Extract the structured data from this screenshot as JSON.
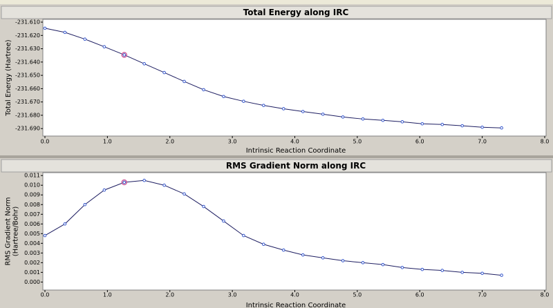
{
  "chart_data": [
    {
      "type": "line",
      "title": "Total Energy along IRC",
      "xlabel": "Intrinsic Reaction Coordinate",
      "ylabel": [
        "Total Energy (Hartree)"
      ],
      "x": [
        0,
        0.32,
        0.64,
        0.95,
        1.27,
        1.59,
        1.91,
        2.23,
        2.54,
        2.86,
        3.18,
        3.5,
        3.82,
        4.13,
        4.45,
        4.77,
        5.09,
        5.41,
        5.72,
        6.04,
        6.36,
        6.68,
        7.0,
        7.31
      ],
      "series": [
        {
          "color": "#1c1c60",
          "values": [
            -231.6146,
            -231.6177,
            -231.6228,
            -231.6285,
            -231.6346,
            -231.6413,
            -231.6479,
            -231.6546,
            -231.6608,
            -231.6659,
            -231.6695,
            -231.6726,
            -231.6751,
            -231.6772,
            -231.6792,
            -231.6813,
            -231.6828,
            -231.6838,
            -231.6849,
            -231.6864,
            -231.6869,
            -231.6879,
            -231.689,
            -231.6895
          ]
        }
      ],
      "marker_color": "#3355cc",
      "highlight_index": 4,
      "highlight_color": "#d0609a",
      "grid": false,
      "xlim": [
        0,
        8
      ],
      "xticks": [
        {
          "value": 0,
          "label": "0.0"
        },
        {
          "value": 1,
          "label": "1.0"
        },
        {
          "value": 2,
          "label": "2.0"
        },
        {
          "value": 3,
          "label": "3.0"
        },
        {
          "value": 4,
          "label": "4.0"
        },
        {
          "value": 5,
          "label": "5.0"
        },
        {
          "value": 6,
          "label": "6.0"
        },
        {
          "value": 7,
          "label": "7.0"
        },
        {
          "value": 8,
          "label": "8.0"
        }
      ],
      "ylim": [
        -231.6925,
        -231.6079
      ],
      "yticks": [
        {
          "value": -231.61,
          "label": "-231.610"
        },
        {
          "value": -231.62,
          "label": "-231.620"
        },
        {
          "value": -231.63,
          "label": "-231.630"
        },
        {
          "value": -231.64,
          "label": "-231.640"
        },
        {
          "value": -231.65,
          "label": "-231.650"
        },
        {
          "value": -231.66,
          "label": "-231.660"
        },
        {
          "value": -231.67,
          "label": "-231.670"
        },
        {
          "value": -231.68,
          "label": "-231.680"
        },
        {
          "value": -231.69,
          "label": "-231.690"
        }
      ]
    },
    {
      "type": "line",
      "title": "RMS Gradient Norm along IRC",
      "xlabel": "Intrinsic Reaction Coordinate",
      "ylabel": [
        "RMS Gradient Norm",
        "(Hartree/Bohr)"
      ],
      "x": [
        0,
        0.32,
        0.64,
        0.95,
        1.27,
        1.59,
        1.91,
        2.23,
        2.54,
        2.86,
        3.18,
        3.5,
        3.82,
        4.13,
        4.45,
        4.77,
        5.09,
        5.41,
        5.72,
        6.04,
        6.36,
        6.68,
        7.0,
        7.31
      ],
      "series": [
        {
          "color": "#1c1c60",
          "values": [
            0.0048,
            0.006,
            0.008,
            0.0095,
            0.0103,
            0.0105,
            0.01,
            0.0091,
            0.0078,
            0.0063,
            0.0048,
            0.0039,
            0.0033,
            0.0028,
            0.0025,
            0.0022,
            0.002,
            0.0018,
            0.0015,
            0.0013,
            0.0012,
            0.001,
            0.0009,
            0.0007
          ]
        }
      ],
      "marker_color": "#3355cc",
      "highlight_index": 4,
      "highlight_color": "#d0609a",
      "grid": false,
      "xlim": [
        0,
        8
      ],
      "xticks": [
        {
          "value": 0,
          "label": "0.0"
        },
        {
          "value": 1,
          "label": "1.0"
        },
        {
          "value": 2,
          "label": "2.0"
        },
        {
          "value": 3,
          "label": "3.0"
        },
        {
          "value": 4,
          "label": "4.0"
        },
        {
          "value": 5,
          "label": "5.0"
        },
        {
          "value": 6,
          "label": "6.0"
        },
        {
          "value": 7,
          "label": "7.0"
        },
        {
          "value": 8,
          "label": "8.0"
        }
      ],
      "ylim": [
        -0.0004,
        0.0113
      ],
      "yticks": [
        {
          "value": 0,
          "label": "0.000"
        },
        0.001,
        0.002,
        0.003,
        0.004,
        0.005,
        0.006,
        0.007,
        0.008,
        0.009,
        {
          "value": 0.01,
          "label": "0.010"
        },
        0.011
      ]
    }
  ]
}
